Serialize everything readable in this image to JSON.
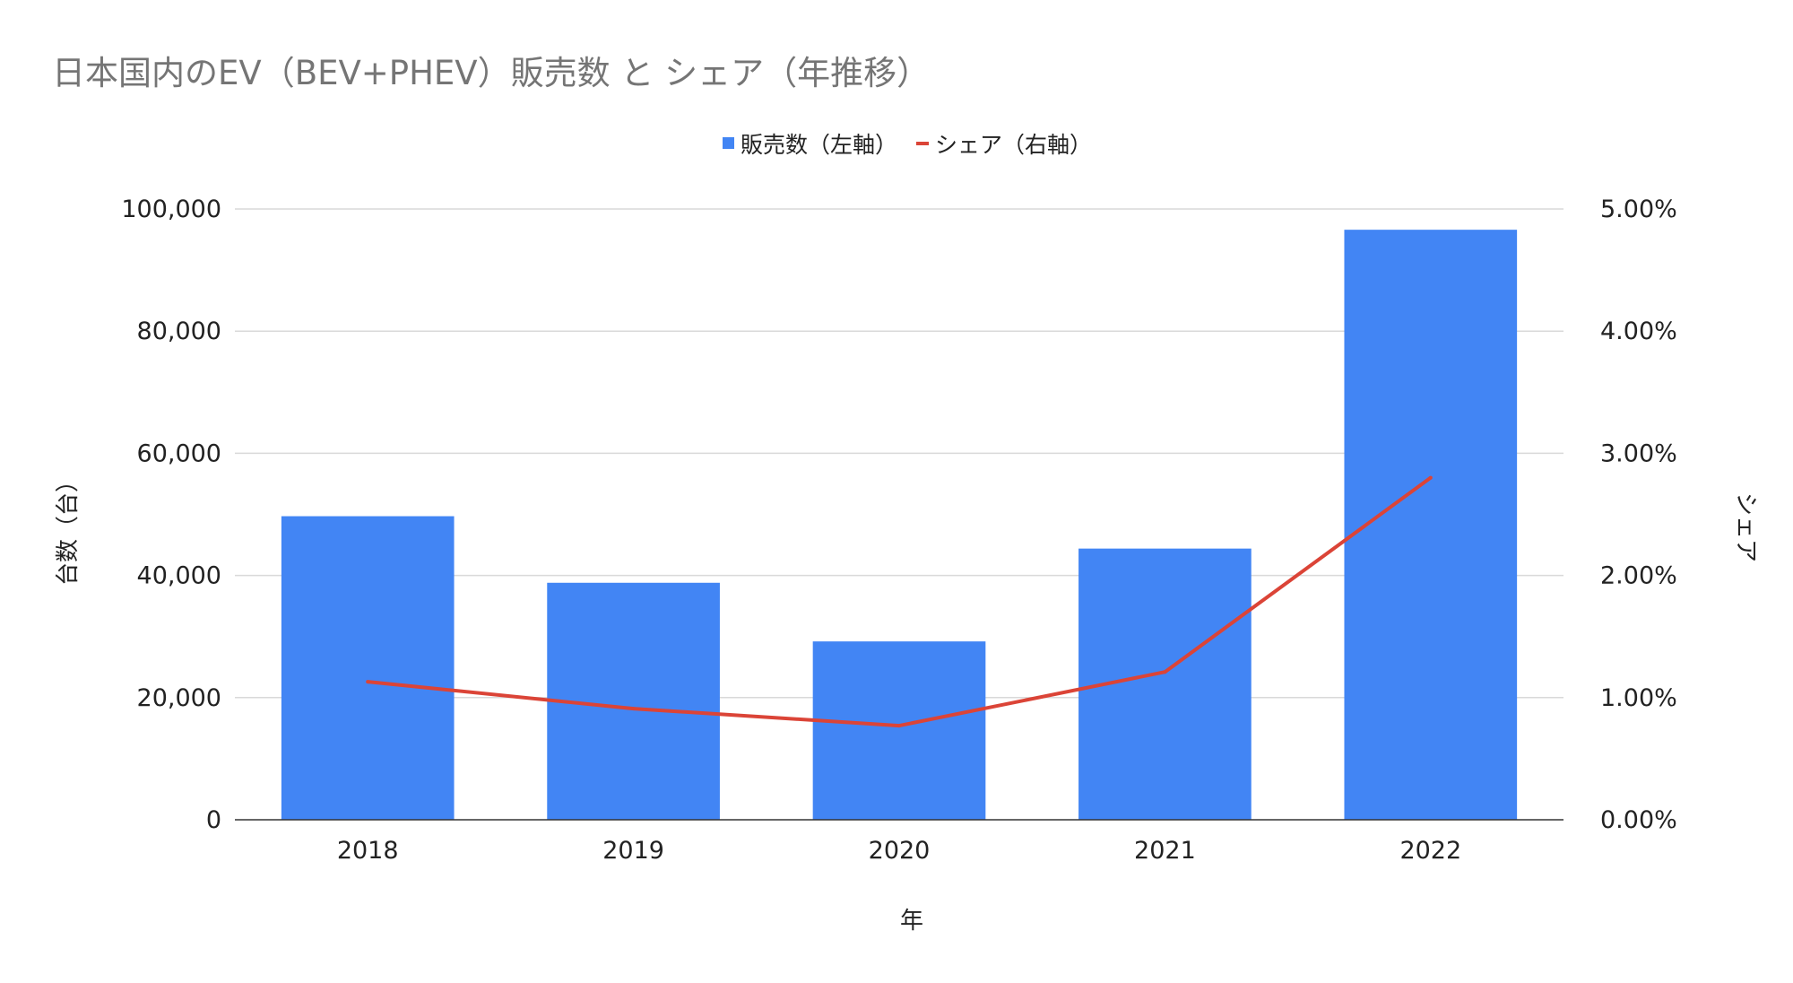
{
  "chart_data": {
    "type": "bar+line",
    "title": "日本国内のEV（BEV+PHEV）販売数 と シェア（年推移）",
    "xlabel": "年",
    "ylabel_left": "台数（台）",
    "ylabel_right": "シェア",
    "categories": [
      "2018",
      "2019",
      "2020",
      "2021",
      "2022"
    ],
    "series": [
      {
        "name": "販売数（左軸）",
        "type": "bar",
        "axis": "left",
        "color": "#4285f4",
        "values": [
          49700,
          38800,
          29200,
          44400,
          96600
        ]
      },
      {
        "name": "シェア（右軸）",
        "type": "line",
        "axis": "right",
        "color": "#db4437",
        "values": [
          1.13,
          0.91,
          0.77,
          1.21,
          2.8
        ]
      }
    ],
    "ylim_left": [
      0,
      100000
    ],
    "ylim_right": [
      0,
      5
    ],
    "yticks_left": [
      "0",
      "20,000",
      "40,000",
      "60,000",
      "80,000",
      "100,000"
    ],
    "yticks_right": [
      "0.00%",
      "1.00%",
      "2.00%",
      "3.00%",
      "4.00%",
      "5.00%"
    ],
    "grid": true,
    "legend_position": "top-center"
  }
}
